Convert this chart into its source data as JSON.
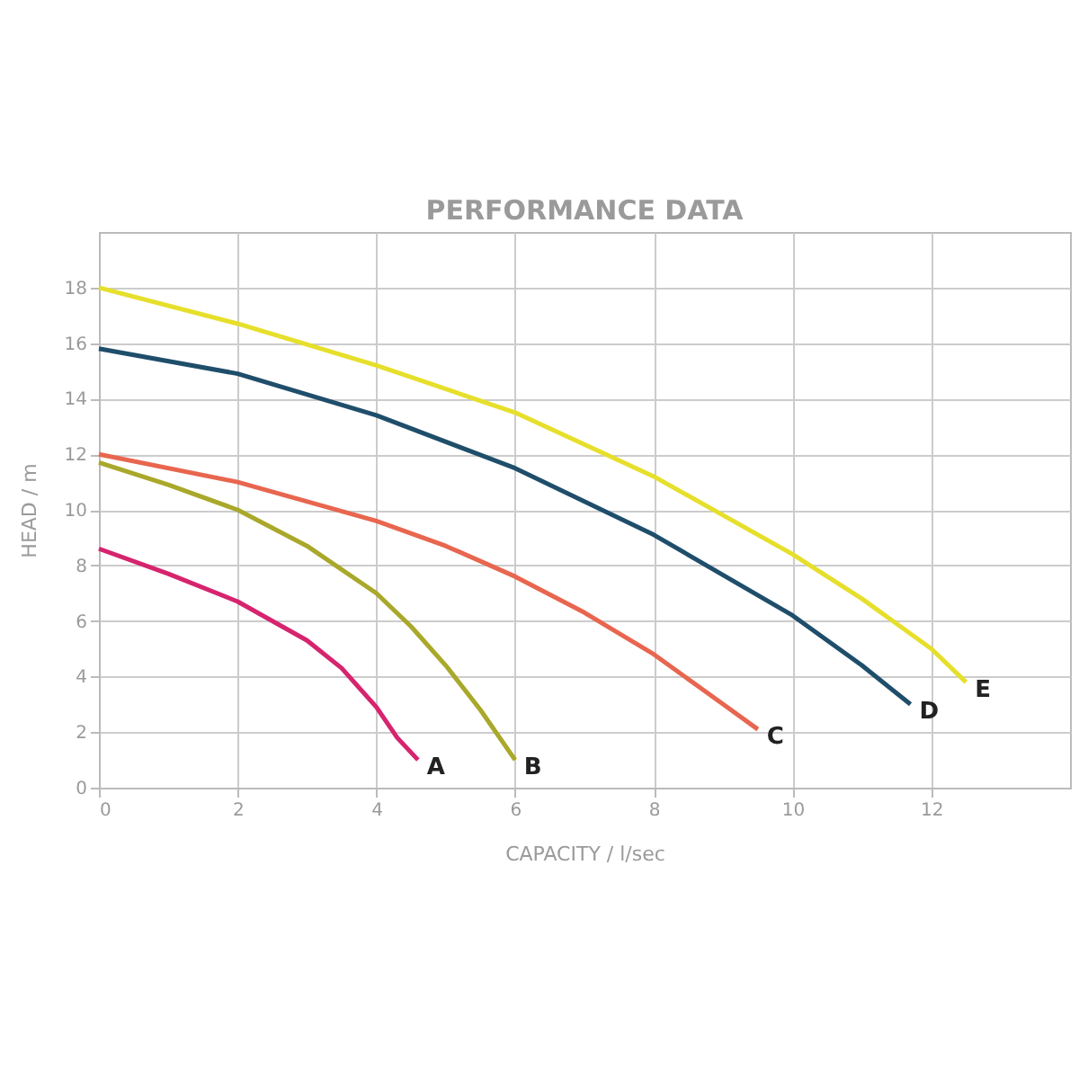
{
  "chart_data": {
    "type": "line",
    "title": "PERFORMANCE DATA",
    "xlabel": "CAPACITY / l/sec",
    "ylabel": "HEAD / m",
    "xlim": [
      0,
      14
    ],
    "ylim": [
      0,
      20
    ],
    "xticks": [
      0,
      2,
      4,
      6,
      8,
      10,
      12
    ],
    "yticks": [
      0,
      2,
      4,
      6,
      8,
      10,
      12,
      14,
      16,
      18
    ],
    "grid": true,
    "legend": false,
    "marker": "none",
    "line_style": "solid",
    "series": [
      {
        "name": "A",
        "color": "#d6246e",
        "x": [
          0,
          1,
          2,
          3,
          3.5,
          4,
          4.3,
          4.6
        ],
        "values": [
          8.6,
          7.7,
          6.7,
          5.3,
          4.3,
          2.9,
          1.8,
          1.0
        ]
      },
      {
        "name": "B",
        "color": "#a9a82a",
        "x": [
          0,
          1,
          2,
          3,
          4,
          4.5,
          5,
          5.5,
          6
        ],
        "values": [
          11.7,
          10.9,
          10,
          8.7,
          7,
          5.8,
          4.4,
          2.8,
          1.0
        ]
      },
      {
        "name": "C",
        "color": "#e8664f",
        "x": [
          0,
          2,
          4,
          5,
          6,
          7,
          8,
          9,
          9.5
        ],
        "values": [
          12,
          11,
          9.6,
          8.7,
          7.6,
          6.3,
          4.8,
          3.0,
          2.1
        ]
      },
      {
        "name": "D",
        "color": "#1f4e6b",
        "x": [
          0,
          2,
          4,
          6,
          8,
          10,
          11,
          11.7
        ],
        "values": [
          15.8,
          14.9,
          13.4,
          11.5,
          9.1,
          6.2,
          4.4,
          3.0
        ]
      },
      {
        "name": "E",
        "color": "#e6df2b",
        "x": [
          0,
          2,
          4,
          6,
          8,
          10,
          11,
          12,
          12.5
        ],
        "values": [
          18,
          16.7,
          15.2,
          13.5,
          11.2,
          8.4,
          6.8,
          5.0,
          3.8
        ]
      }
    ]
  }
}
